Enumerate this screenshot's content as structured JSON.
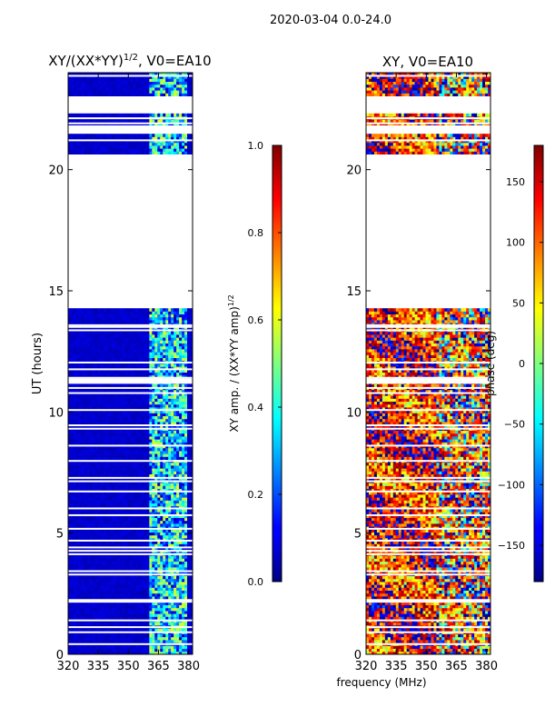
{
  "figure_title": "2020-03-04 0.0-24.0",
  "shared_xlabel": "frequency (MHz)",
  "colors": {
    "background": "#ffffff",
    "axis": "#000000",
    "dark_blue": "#00007f"
  },
  "chart_data": [
    {
      "type": "heatmap",
      "title_main": "XY/(XX*YY)",
      "title_sup": "1/2",
      "title_tail": ", V0=EA10",
      "xlabel": "",
      "ylabel": "UT (hours)",
      "xlim": [
        320,
        382
      ],
      "ylim": [
        0,
        24
      ],
      "xticks": [
        320,
        335,
        350,
        365,
        380
      ],
      "yticks": [
        0,
        5,
        10,
        15,
        20
      ],
      "colormap": "jet",
      "colorbar": {
        "label_main": "XY amp. / (XX*YY amp)",
        "label_sup": "1/2",
        "range": [
          0.0,
          1.0
        ],
        "ticks": [
          "0.0",
          "0.2",
          "0.4",
          "0.6",
          "0.8",
          "1.0"
        ],
        "tick_values": [
          0.0,
          0.2,
          0.4,
          0.6,
          0.8,
          1.0
        ]
      },
      "data_gaps_hours": [
        [
          14.3,
          20.7
        ],
        [
          21.5,
          21.9
        ],
        [
          22.3,
          23.0
        ]
      ],
      "rfi_band_mhz": [
        360,
        378
      ],
      "baseline_value": 0.05,
      "band_value_range": [
        0.2,
        0.6
      ]
    },
    {
      "type": "heatmap",
      "title_main": "XY, V0=EA10",
      "xlabel": "frequency (MHz)",
      "ylabel": "",
      "xlim": [
        320,
        382
      ],
      "ylim": [
        0,
        24
      ],
      "xticks": [
        320,
        335,
        350,
        365,
        380
      ],
      "yticks": [
        0,
        5,
        10,
        15,
        20
      ],
      "colormap": "jet",
      "colorbar": {
        "label_main": "phase (deg)",
        "range": [
          -180,
          180
        ],
        "ticks": [
          "−150",
          "−100",
          "−50",
          "0",
          "50",
          "100",
          "150"
        ],
        "tick_values": [
          -150,
          -100,
          -50,
          0,
          50,
          100,
          150
        ]
      },
      "data_gaps_hours": [
        [
          14.3,
          20.7
        ],
        [
          21.5,
          21.9
        ],
        [
          22.3,
          23.0
        ]
      ],
      "dominant_phase_deg": 130,
      "phase_spread_deg": 90
    }
  ]
}
